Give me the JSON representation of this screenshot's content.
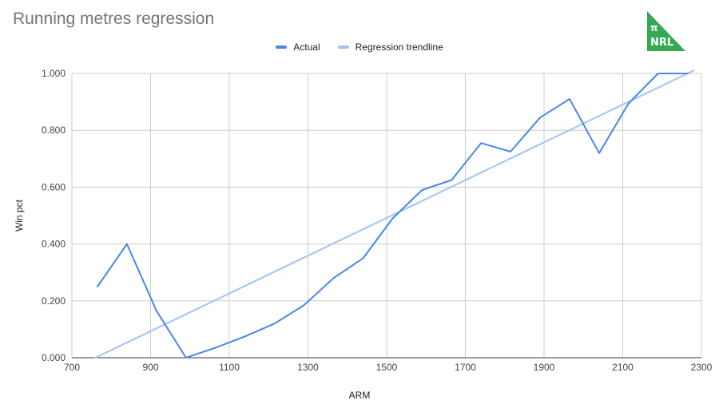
{
  "chart_data": {
    "type": "line",
    "title": "Running metres regression",
    "xlabel": "ARM",
    "ylabel": "Win pct",
    "xlim": [
      700,
      2300
    ],
    "ylim": [
      0,
      1
    ],
    "x_ticks": [
      "700",
      "900",
      "1100",
      "1300",
      "1500",
      "1700",
      "1900",
      "2100",
      "2300"
    ],
    "y_ticks": [
      "0.000",
      "0.200",
      "0.400",
      "0.600",
      "0.800",
      "1.000"
    ],
    "grid": true,
    "legend_position": "top",
    "series": [
      {
        "name": "Actual",
        "color": "#4a86e8",
        "points": [
          [
            765,
            0.25
          ],
          [
            840,
            0.4
          ],
          [
            915,
            0.165
          ],
          [
            990,
            0.0
          ],
          [
            1065,
            0.035
          ],
          [
            1140,
            0.075
          ],
          [
            1215,
            0.12
          ],
          [
            1290,
            0.185
          ],
          [
            1365,
            0.28
          ],
          [
            1440,
            0.35
          ],
          [
            1515,
            0.49
          ],
          [
            1590,
            0.59
          ],
          [
            1665,
            0.625
          ],
          [
            1740,
            0.755
          ],
          [
            1815,
            0.725
          ],
          [
            1890,
            0.845
          ],
          [
            1965,
            0.91
          ],
          [
            2040,
            0.72
          ],
          [
            2115,
            0.895
          ],
          [
            2190,
            1.0
          ],
          [
            2265,
            1.0
          ]
        ]
      },
      {
        "name": "Regression trendline",
        "color": "#a4c2f4",
        "points": [
          [
            760,
            0.0
          ],
          [
            2280,
            1.01
          ]
        ]
      }
    ]
  },
  "logo": {
    "symbol": "π",
    "text": "NRL",
    "color": "#34a853"
  }
}
